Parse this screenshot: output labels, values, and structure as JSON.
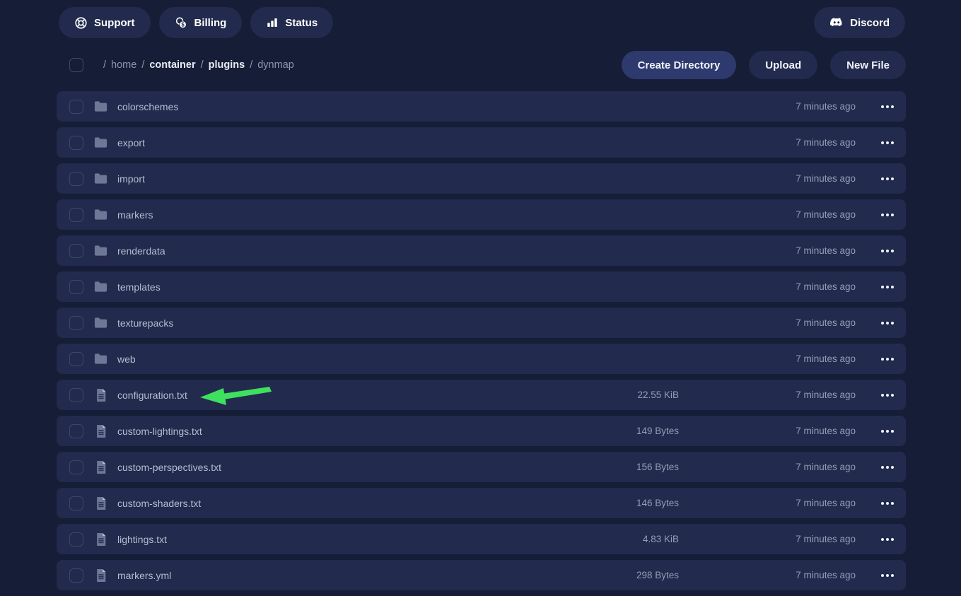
{
  "colors": {
    "page_bg": "#161d36",
    "row_bg": "#222a4d",
    "primary_button_bg": "#2e3a6d",
    "arrow_green": "#3ee05f",
    "icon_gray": "#6e7795"
  },
  "topbar": {
    "buttons": [
      {
        "label": "Support",
        "icon": "life-ring-icon"
      },
      {
        "label": "Billing",
        "icon": "coins-icon"
      },
      {
        "label": "Status",
        "icon": "bar-chart-icon"
      }
    ],
    "discord": {
      "label": "Discord",
      "icon": "discord-icon"
    }
  },
  "toolbar": {
    "breadcrumb": {
      "separator": "/",
      "segments": [
        {
          "label": "home",
          "emphasis": false
        },
        {
          "label": "container",
          "emphasis": true
        },
        {
          "label": "plugins",
          "emphasis": true
        },
        {
          "label": "dynmap",
          "emphasis": false
        }
      ]
    },
    "buttons": {
      "create_directory": "Create Directory",
      "upload": "Upload",
      "new_file": "New File"
    }
  },
  "file_list": {
    "rows": [
      {
        "name": "colorschemes",
        "type": "folder",
        "size": "",
        "modified": "7 minutes ago"
      },
      {
        "name": "export",
        "type": "folder",
        "size": "",
        "modified": "7 minutes ago"
      },
      {
        "name": "import",
        "type": "folder",
        "size": "",
        "modified": "7 minutes ago"
      },
      {
        "name": "markers",
        "type": "folder",
        "size": "",
        "modified": "7 minutes ago"
      },
      {
        "name": "renderdata",
        "type": "folder",
        "size": "",
        "modified": "7 minutes ago"
      },
      {
        "name": "templates",
        "type": "folder",
        "size": "",
        "modified": "7 minutes ago"
      },
      {
        "name": "texturepacks",
        "type": "folder",
        "size": "",
        "modified": "7 minutes ago"
      },
      {
        "name": "web",
        "type": "folder",
        "size": "",
        "modified": "7 minutes ago"
      },
      {
        "name": "configuration.txt",
        "type": "file",
        "size": "22.55 KiB",
        "modified": "7 minutes ago",
        "annotation": "green-arrow"
      },
      {
        "name": "custom-lightings.txt",
        "type": "file",
        "size": "149 Bytes",
        "modified": "7 minutes ago"
      },
      {
        "name": "custom-perspectives.txt",
        "type": "file",
        "size": "156 Bytes",
        "modified": "7 minutes ago"
      },
      {
        "name": "custom-shaders.txt",
        "type": "file",
        "size": "146 Bytes",
        "modified": "7 minutes ago"
      },
      {
        "name": "lightings.txt",
        "type": "file",
        "size": "4.83 KiB",
        "modified": "7 minutes ago"
      },
      {
        "name": "markers.yml",
        "type": "file",
        "size": "298 Bytes",
        "modified": "7 minutes ago"
      }
    ]
  }
}
